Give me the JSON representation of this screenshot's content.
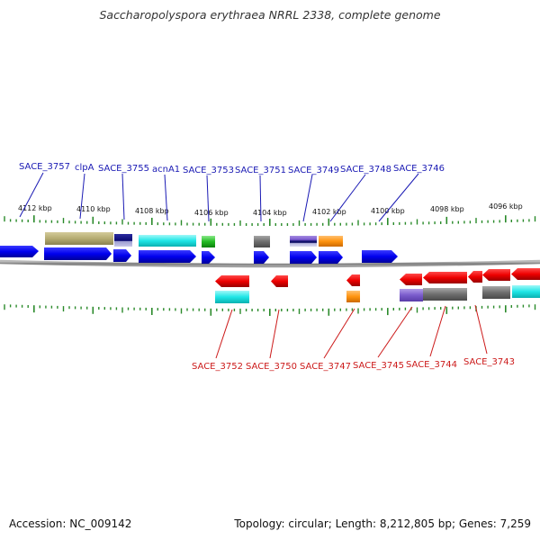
{
  "title": "Saccharopolyspora erythraea NRRL 2338, complete genome",
  "footer": {
    "accession": "Accession: NC_009142",
    "summary": "Topology: circular; Length: 8,212,805 bp; Genes: 7,259"
  },
  "colors": {
    "forward_gene": "#0000ee",
    "reverse_gene": "#ee0000",
    "forward_label": "#1a1ab4",
    "reverse_label": "#cc1a1a",
    "tick": "#2a8a2a",
    "backbone": "#808080"
  },
  "kbp_labels": [
    "4112 kbp",
    "4110 kbp",
    "4108 kbp",
    "4106 kbp",
    "4104 kbp",
    "4102 kbp",
    "4100 kbp",
    "4098 kbp",
    "4096 kbp"
  ],
  "forward_labels": [
    "SACE_3757",
    "clpA",
    "SACE_3755",
    "acnA1",
    "SACE_3753",
    "SACE_3751",
    "SACE_3749",
    "SACE_3748",
    "SACE_3746"
  ],
  "reverse_labels": [
    "SACE_3752",
    "SACE_3750",
    "SACE_3747",
    "SACE_3745",
    "SACE_3744",
    "SACE_3743"
  ]
}
